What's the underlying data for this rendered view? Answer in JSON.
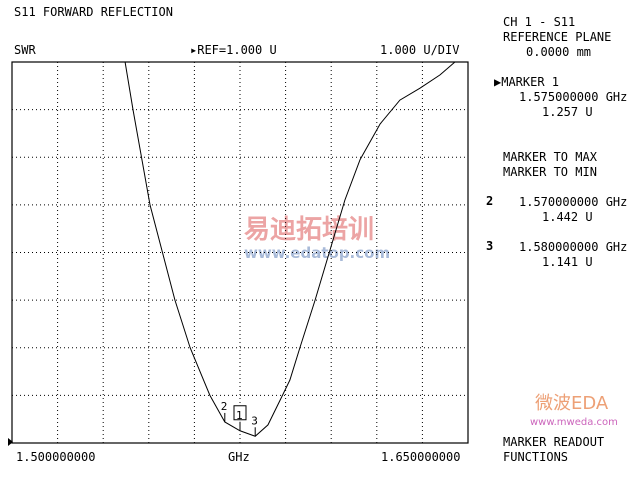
{
  "header": {
    "title": "S11 FORWARD REFLECTION",
    "format": "SWR",
    "ref": "REF=1.000 U",
    "scale": "1.000 U/DIV"
  },
  "side": {
    "channel": "CH 1 - S11",
    "ref_plane_label": "REFERENCE PLANE",
    "ref_plane_value": "0.0000 mm",
    "marker1_label": "MARKER 1",
    "marker1_freq": "1.575000000 GHz",
    "marker1_value": "1.257 U",
    "marker_to_max": "MARKER TO MAX",
    "marker_to_min": "MARKER TO MIN",
    "marker2_num": "2",
    "marker2_freq": "1.570000000 GHz",
    "marker2_value": "1.442 U",
    "marker3_num": "3",
    "marker3_freq": "1.580000000 GHz",
    "marker3_value": "1.141 U",
    "readout1": "MARKER READOUT",
    "readout2": "FUNCTIONS"
  },
  "watermarks": {
    "edatop_cn": "易迪拓培训",
    "edatop_url": "www.edatop.com",
    "mweda": "微波EDA",
    "mweda_url": "www.mweda.com"
  },
  "chart_data": {
    "type": "line",
    "title": "S11 FORWARD REFLECTION",
    "ylabel": "SWR",
    "xlabel": "GHz",
    "xlim": [
      1.5,
      1.65
    ],
    "ylim": [
      1,
      9
    ],
    "x_tick_labels": {
      "start": "1.500000000",
      "stop": "1.650000000",
      "unit": "GHz"
    },
    "grid": true,
    "x_divisions": 10,
    "y_divisions": 8,
    "series": [
      {
        "x": [
          1.5372,
          1.5398,
          1.5454,
          1.5536,
          1.5586,
          1.5651,
          1.57,
          1.575,
          1.58,
          1.5842,
          1.5882,
          1.5914,
          1.5947,
          1.5997,
          1.6046,
          1.6095,
          1.6145,
          1.6211,
          1.6276,
          1.6342,
          1.6408,
          1.6457
        ],
        "y": [
          9.0,
          8.0,
          6.0,
          4.0,
          3.0,
          2.0,
          1.442,
          1.257,
          1.141,
          1.38,
          1.9,
          2.32,
          3.0,
          4.0,
          5.05,
          6.1,
          6.95,
          7.7,
          8.2,
          8.45,
          8.73,
          9.0
        ]
      }
    ],
    "markers": [
      {
        "label": "1",
        "x": 1.575,
        "y": 1.257,
        "active": true
      },
      {
        "label": "2",
        "x": 1.57,
        "y": 1.442
      },
      {
        "label": "3",
        "x": 1.58,
        "y": 1.141
      }
    ]
  }
}
